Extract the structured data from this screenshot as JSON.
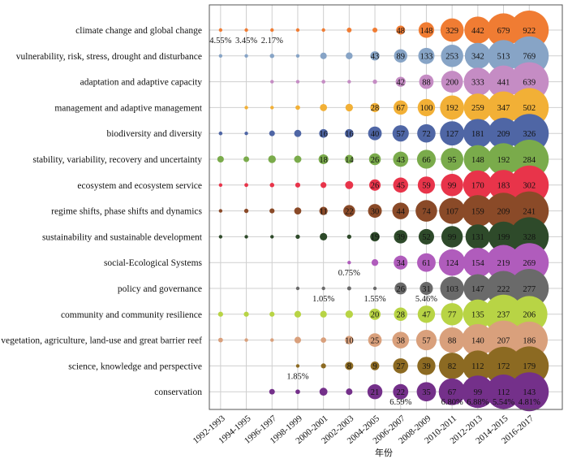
{
  "chart_data": {
    "type": "scatter",
    "title": "",
    "xlabel": "年份",
    "ylabel": "",
    "grid": true,
    "legend": "none",
    "categories": [
      "1992-1993",
      "1994-1995",
      "1996-1997",
      "1998-1999",
      "2000-2001",
      "2002-2003",
      "2004-2005",
      "2006-2007",
      "2008-2009",
      "2010-2011",
      "2012-2013",
      "2014-2015",
      "2016-2017"
    ],
    "series": [
      {
        "name": "climate change and global change",
        "color": "#f07c33",
        "values": [
          1,
          1,
          1,
          4,
          5,
          14,
          15,
          48,
          148,
          329,
          442,
          679,
          922
        ]
      },
      {
        "name": "vulnerability, risk, stress, drought and disturbance",
        "color": "#87a4c6",
        "values": [
          5,
          4,
          10,
          4,
          22,
          24,
          43,
          89,
          133,
          253,
          342,
          513,
          769
        ]
      },
      {
        "name": "adaptation and adaptive capacity",
        "color": "#c58cc4",
        "values": [
          null,
          null,
          2,
          2,
          6,
          3,
          8,
          42,
          88,
          200,
          333,
          441,
          639
        ]
      },
      {
        "name": "management and adaptive management",
        "color": "#f2b036",
        "values": [
          null,
          2,
          4,
          7,
          17,
          19,
          28,
          67,
          100,
          192,
          259,
          347,
          502
        ]
      },
      {
        "name": "biodiversity and diversity",
        "color": "#4f66a5",
        "values": [
          3,
          2,
          7,
          11,
          16,
          16,
          40,
          57,
          72,
          127,
          181,
          209,
          326
        ]
      },
      {
        "name": "stability, variability, recovery and uncertainty",
        "color": "#7aab4b",
        "values": [
          8,
          6,
          11,
          10,
          18,
          14,
          26,
          43,
          66,
          95,
          148,
          192,
          284
        ]
      },
      {
        "name": "ecosystem and ecosystem service",
        "color": "#e8344a",
        "values": [
          2,
          3,
          4,
          5,
          7,
          13,
          26,
          45,
          59,
          99,
          170,
          183,
          302
        ]
      },
      {
        "name": "regime shifts, phase shifts and dynamics",
        "color": "#8a4a28",
        "values": [
          1,
          3,
          4,
          8,
          11,
          22,
          30,
          44,
          74,
          107,
          159,
          209,
          241
        ]
      },
      {
        "name": "sustainability and sustainable development",
        "color": "#2e4a2a",
        "values": [
          2,
          1,
          2,
          4,
          12,
          4,
          19,
          39,
          52,
          99,
          131,
          199,
          328
        ]
      },
      {
        "name": "social-Ecological Systems",
        "color": "#b05cbc",
        "values": [
          null,
          null,
          null,
          null,
          null,
          1,
          8,
          34,
          61,
          124,
          154,
          219,
          269
        ]
      },
      {
        "name": "policy and governance",
        "color": "#6a6a6a",
        "values": [
          null,
          null,
          null,
          2,
          1,
          3,
          1,
          26,
          31,
          103,
          147,
          222,
          277
        ]
      },
      {
        "name": "community and community resilience",
        "color": "#b8d445",
        "values": [
          4,
          4,
          4,
          7,
          7,
          9,
          20,
          28,
          47,
          77,
          135,
          237,
          206
        ]
      },
      {
        "name": "vegetation, agriculture, land-use and great barrier reef",
        "color": "#d9a07c",
        "values": [
          3,
          1,
          1,
          6,
          4,
          10,
          25,
          38,
          57,
          88,
          140,
          207,
          186
        ]
      },
      {
        "name": "science, knowledge and perspective",
        "color": "#8c6a22",
        "values": [
          null,
          null,
          null,
          1,
          3,
          8,
          9,
          27,
          39,
          82,
          112,
          172,
          179
        ]
      },
      {
        "name": "conservation",
        "color": "#74308a",
        "values": [
          null,
          null,
          3,
          2,
          6,
          4,
          21,
          22,
          35,
          67,
          99,
          112,
          143
        ]
      }
    ],
    "annotations": [
      {
        "row": 0,
        "col": 0,
        "text": "4.55%"
      },
      {
        "row": 0,
        "col": 1,
        "text": "3.45%"
      },
      {
        "row": 0,
        "col": 2,
        "text": "2.17%"
      },
      {
        "row": 9,
        "col": 5,
        "text": "0.75%"
      },
      {
        "row": 10,
        "col": 4,
        "text": "1.05%"
      },
      {
        "row": 10,
        "col": 6,
        "text": "1.55%"
      },
      {
        "row": 10,
        "col": 8,
        "text": "5.46%"
      },
      {
        "row": 13,
        "col": 3,
        "text": "1.85%"
      },
      {
        "row": 14,
        "col": 7,
        "text": "6.59%"
      },
      {
        "row": 14,
        "col": 9,
        "text": "6.80%"
      },
      {
        "row": 14,
        "col": 10,
        "text": "6.88%"
      },
      {
        "row": 14,
        "col": 11,
        "text": "5.54%"
      },
      {
        "row": 14,
        "col": 12,
        "text": "4.81%"
      }
    ]
  }
}
